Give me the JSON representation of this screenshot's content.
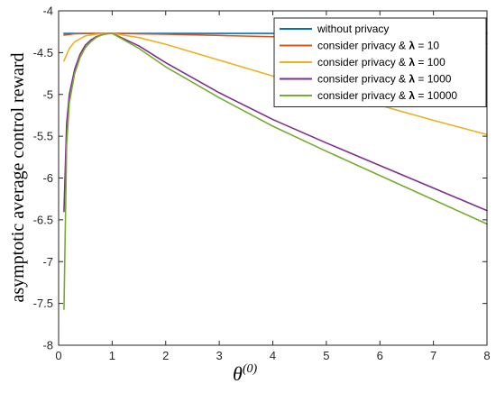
{
  "chart_data": {
    "type": "line",
    "title": "",
    "xlabel": "θ",
    "xlabel_superscript": "(0)",
    "ylabel": "asymptotic average control reward",
    "xlim": [
      0,
      8
    ],
    "ylim": [
      -8,
      -4
    ],
    "xticks": [
      0,
      1,
      2,
      3,
      4,
      5,
      6,
      7,
      8
    ],
    "yticks": [
      -8,
      -7.5,
      -7,
      -6.5,
      -6,
      -5.5,
      -5,
      -4.5,
      -4
    ],
    "grid": false,
    "legend_position": "top-right",
    "series": [
      {
        "name": "without privacy",
        "color": "#0072BD",
        "x": [
          0.1,
          1,
          2,
          3,
          4,
          5,
          6,
          7,
          8
        ],
        "y": [
          -4.27,
          -4.27,
          -4.27,
          -4.27,
          -4.27,
          -4.27,
          -4.27,
          -4.27,
          -4.27
        ]
      },
      {
        "name": "consider privacy & λ = 10",
        "name_parts": [
          "consider privacy & ",
          "λ",
          " = 10"
        ],
        "color": "#D95319",
        "x": [
          0.1,
          0.3,
          0.5,
          1,
          2,
          3,
          4,
          5,
          6,
          7,
          8
        ],
        "y": [
          -4.29,
          -4.275,
          -4.272,
          -4.27,
          -4.28,
          -4.295,
          -4.31,
          -4.33,
          -4.35,
          -4.37,
          -4.39
        ]
      },
      {
        "name": "consider privacy & λ = 100",
        "name_parts": [
          "consider privacy & ",
          "λ",
          " = 100"
        ],
        "color": "#EDB120",
        "x": [
          0.1,
          0.2,
          0.3,
          0.5,
          0.7,
          1,
          1.5,
          2,
          3,
          4,
          5,
          6,
          7,
          8
        ],
        "y": [
          -4.6,
          -4.45,
          -4.37,
          -4.3,
          -4.28,
          -4.27,
          -4.32,
          -4.4,
          -4.59,
          -4.78,
          -4.96,
          -5.13,
          -5.31,
          -5.48
        ]
      },
      {
        "name": "consider privacy & λ = 1000",
        "name_parts": [
          "consider privacy & ",
          "λ",
          " = 1000"
        ],
        "color": "#7E2F8E",
        "x": [
          0.1,
          0.15,
          0.2,
          0.3,
          0.4,
          0.5,
          0.6,
          0.7,
          0.8,
          0.9,
          1,
          1.5,
          2,
          3,
          4,
          5,
          6,
          7,
          8
        ],
        "y": [
          -6.4,
          -5.35,
          -5.0,
          -4.7,
          -4.52,
          -4.41,
          -4.35,
          -4.31,
          -4.29,
          -4.275,
          -4.27,
          -4.42,
          -4.62,
          -4.98,
          -5.3,
          -5.58,
          -5.85,
          -6.12,
          -6.39
        ]
      },
      {
        "name": "consider privacy & λ = 10000",
        "name_parts": [
          "consider privacy & ",
          "λ",
          " = 10000"
        ],
        "color": "#77AC30",
        "x": [
          0.1,
          0.15,
          0.2,
          0.3,
          0.4,
          0.5,
          0.6,
          0.7,
          0.8,
          0.9,
          1,
          1.5,
          2,
          3,
          4,
          5,
          6,
          7,
          8
        ],
        "y": [
          -7.57,
          -5.6,
          -5.1,
          -4.75,
          -4.56,
          -4.44,
          -4.37,
          -4.32,
          -4.29,
          -4.275,
          -4.27,
          -4.45,
          -4.67,
          -5.04,
          -5.38,
          -5.68,
          -5.97,
          -6.26,
          -6.55
        ]
      }
    ]
  }
}
